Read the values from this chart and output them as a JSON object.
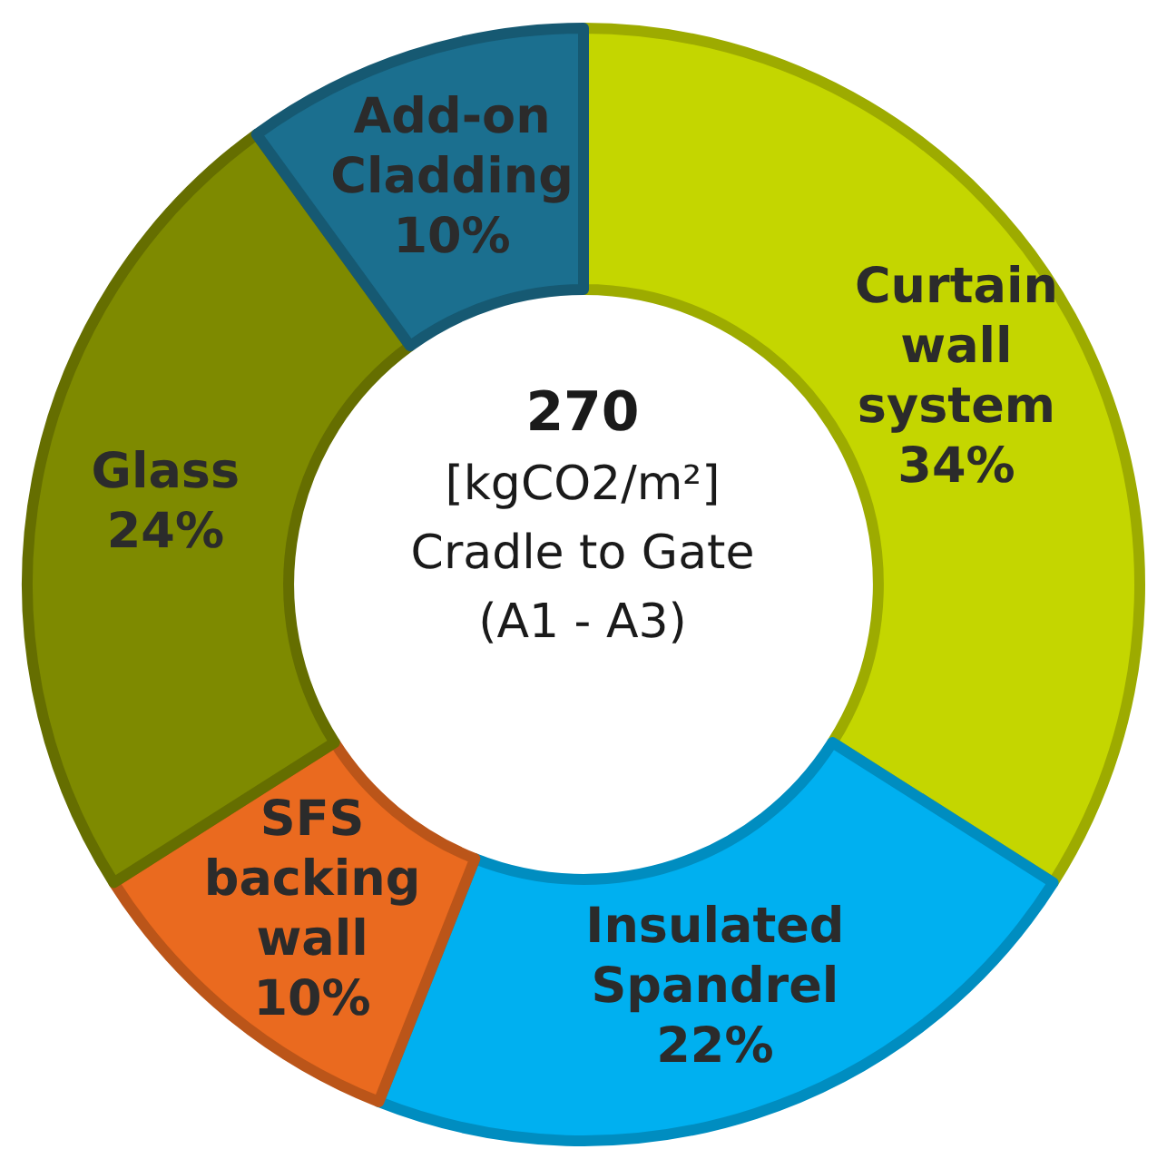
{
  "chart_data": {
    "type": "donut",
    "title": "270",
    "annotations": [
      "[kgCO2/m²]",
      "Cradle to Gate",
      "(A1 - A3)"
    ],
    "categories": [
      "Curtain wall system",
      "Insulated Spandrel",
      "SFS backing wall",
      "Glass",
      "Add-on Cladding"
    ],
    "values": [
      34,
      22,
      10,
      24,
      10
    ],
    "colors": [
      "#c4d600",
      "#00b0f0",
      "#ea6a1f",
      "#7e8a00",
      "#1b6f8f"
    ],
    "value_labels": [
      "34%",
      "22%",
      "10%",
      "24%",
      "10%"
    ],
    "legend": false
  }
}
